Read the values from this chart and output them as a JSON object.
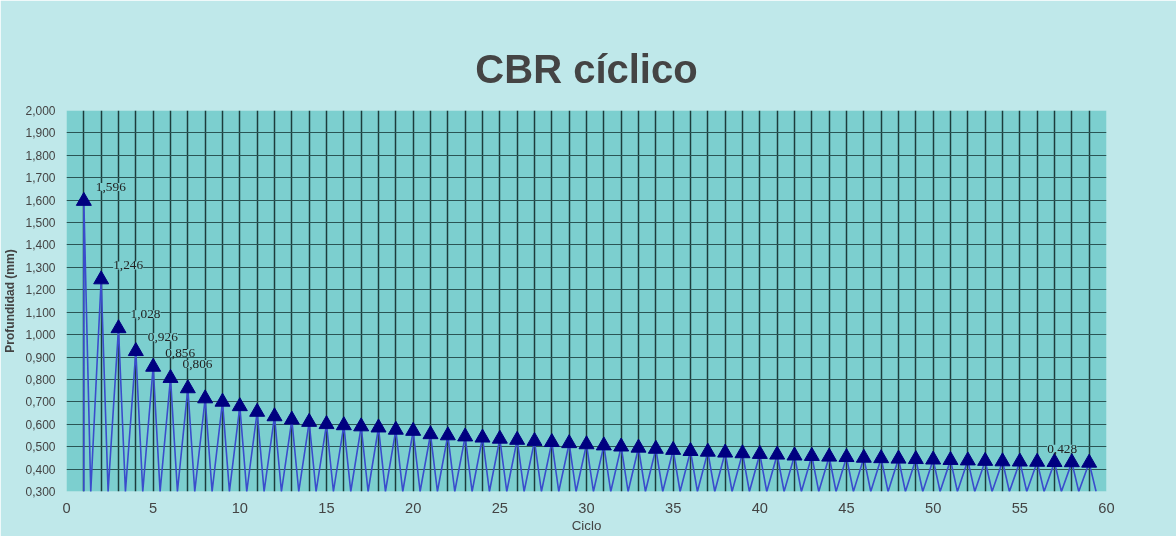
{
  "chart_data": {
    "type": "line",
    "title": "CBR cíclico",
    "xlabel": "Ciclo",
    "ylabel": "Profundidad (mm)",
    "xlim": [
      0,
      60
    ],
    "xticks": [
      0,
      5,
      10,
      15,
      20,
      25,
      30,
      35,
      40,
      45,
      50,
      55,
      60
    ],
    "ylim": [
      0.3,
      2.0
    ],
    "yticks": [
      {
        "value": 0.3,
        "label": "0,300"
      },
      {
        "value": 0.4,
        "label": "0,400"
      },
      {
        "value": 0.5,
        "label": "0,500"
      },
      {
        "value": 0.6,
        "label": "0,600"
      },
      {
        "value": 0.7,
        "label": "0,700"
      },
      {
        "value": 0.8,
        "label": "0,800"
      },
      {
        "value": 0.9,
        "label": "0,900"
      },
      {
        "value": 1.0,
        "label": "1,000"
      },
      {
        "value": 1.1,
        "label": "1,100"
      },
      {
        "value": 1.2,
        "label": "1,200"
      },
      {
        "value": 1.3,
        "label": "1,300"
      },
      {
        "value": 1.4,
        "label": "1,400"
      },
      {
        "value": 1.5,
        "label": "1,500"
      },
      {
        "value": 1.6,
        "label": "1,600"
      },
      {
        "value": 1.7,
        "label": "1,700"
      },
      {
        "value": 1.8,
        "label": "1,800"
      },
      {
        "value": 1.9,
        "label": "1,900"
      },
      {
        "value": 2.0,
        "label": "2,000"
      }
    ],
    "grid": true,
    "series": [
      {
        "color": "#3a4ccc",
        "marker": "none",
        "x": [
          1,
          1,
          1.4,
          2,
          2.4,
          3,
          3.4,
          4,
          4.4,
          5,
          5.4,
          6,
          6.4,
          7,
          7.4,
          8,
          8.4,
          9,
          9.4,
          10,
          10.4,
          11,
          11.4,
          12,
          12.4,
          13,
          13.4,
          14,
          14.4,
          15,
          15.4,
          16,
          16.4,
          17,
          17.4,
          18,
          18.4,
          19,
          19.4,
          20,
          20.4,
          21,
          21.4,
          22,
          22.4,
          23,
          23.4,
          24,
          24.4,
          25,
          25.4,
          26,
          26.4,
          27,
          27.4,
          28,
          28.4,
          29,
          29.4,
          30,
          30.4,
          31,
          31.4,
          32,
          32.4,
          33,
          33.4,
          34,
          34.4,
          35,
          35.4,
          36,
          36.4,
          37,
          37.4,
          38,
          38.4,
          39,
          39.4,
          40,
          40.4,
          41,
          41.4,
          42,
          42.4,
          43,
          43.4,
          44,
          44.4,
          45,
          45.4,
          46,
          46.4,
          47,
          47.4,
          48,
          48.4,
          49,
          49.4,
          50,
          50.4,
          51,
          51.4,
          52,
          52.4,
          53,
          53.4,
          54,
          54.4,
          55,
          55.4,
          56,
          56.4,
          57,
          57.4,
          58,
          58.4,
          59,
          59.4
        ],
        "values": [
          0.3,
          1.596,
          0.3,
          1.246,
          0.3,
          1.028,
          0.3,
          0.926,
          0.3,
          0.856,
          0.3,
          0.806,
          0.3,
          0.76,
          0.3,
          0.715,
          0.3,
          0.7,
          0.3,
          0.68,
          0.3,
          0.655,
          0.3,
          0.635,
          0.3,
          0.62,
          0.3,
          0.61,
          0.3,
          0.6,
          0.3,
          0.595,
          0.3,
          0.59,
          0.3,
          0.585,
          0.3,
          0.575,
          0.3,
          0.57,
          0.3,
          0.555,
          0.3,
          0.55,
          0.3,
          0.545,
          0.3,
          0.54,
          0.3,
          0.535,
          0.3,
          0.53,
          0.3,
          0.525,
          0.3,
          0.52,
          0.3,
          0.515,
          0.3,
          0.51,
          0.3,
          0.505,
          0.3,
          0.5,
          0.3,
          0.495,
          0.3,
          0.49,
          0.3,
          0.485,
          0.3,
          0.48,
          0.3,
          0.477,
          0.3,
          0.473,
          0.3,
          0.47,
          0.3,
          0.467,
          0.3,
          0.464,
          0.3,
          0.46,
          0.3,
          0.458,
          0.3,
          0.455,
          0.3,
          0.453,
          0.3,
          0.45,
          0.3,
          0.448,
          0.3,
          0.446,
          0.3,
          0.444,
          0.3,
          0.442,
          0.3,
          0.44,
          0.3,
          0.438,
          0.3,
          0.436,
          0.3,
          0.434,
          0.3,
          0.433,
          0.3,
          0.432,
          0.3,
          0.431,
          0.3,
          0.43,
          0.3,
          0.428,
          0.3
        ]
      },
      {
        "type": "scatter",
        "color": "#000080",
        "marker": "triangle",
        "x": [
          1,
          2,
          3,
          4,
          5,
          6,
          7,
          8,
          9,
          10,
          11,
          12,
          13,
          14,
          15,
          16,
          17,
          18,
          19,
          20,
          21,
          22,
          23,
          24,
          25,
          26,
          27,
          28,
          29,
          30,
          31,
          32,
          33,
          34,
          35,
          36,
          37,
          38,
          39,
          40,
          41,
          42,
          43,
          44,
          45,
          46,
          47,
          48,
          49,
          50,
          51,
          52,
          53,
          54,
          55,
          56,
          57,
          58,
          59
        ],
        "values": [
          1.596,
          1.246,
          1.028,
          0.926,
          0.856,
          0.806,
          0.76,
          0.715,
          0.7,
          0.68,
          0.655,
          0.635,
          0.62,
          0.61,
          0.6,
          0.595,
          0.59,
          0.585,
          0.575,
          0.57,
          0.555,
          0.55,
          0.545,
          0.54,
          0.535,
          0.53,
          0.525,
          0.52,
          0.515,
          0.51,
          0.505,
          0.5,
          0.495,
          0.49,
          0.485,
          0.48,
          0.477,
          0.473,
          0.47,
          0.467,
          0.464,
          0.46,
          0.458,
          0.455,
          0.453,
          0.45,
          0.448,
          0.446,
          0.444,
          0.442,
          0.44,
          0.438,
          0.436,
          0.434,
          0.433,
          0.432,
          0.431,
          0.43,
          0.428
        ],
        "value_labels": [
          "1,596",
          "1,246",
          "1,028",
          "0,926",
          "0,856",
          "0,806",
          null,
          null,
          null,
          null,
          null,
          null,
          null,
          null,
          null,
          null,
          null,
          null,
          null,
          null,
          null,
          null,
          null,
          null,
          null,
          null,
          null,
          null,
          null,
          null,
          null,
          null,
          null,
          null,
          null,
          null,
          null,
          null,
          null,
          null,
          null,
          null,
          null,
          null,
          null,
          null,
          null,
          null,
          null,
          null,
          null,
          null,
          null,
          null,
          null,
          null,
          null,
          null,
          "0,428"
        ]
      }
    ]
  }
}
